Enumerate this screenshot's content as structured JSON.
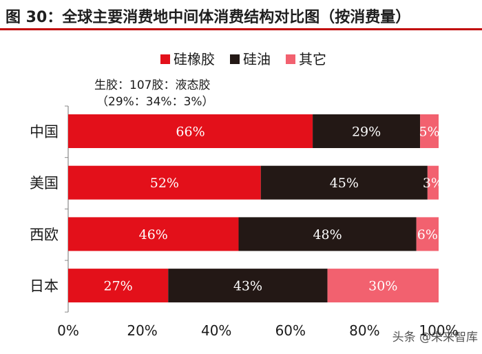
{
  "header": {
    "title": "图 30：全球主要消费地中间体消费结构对比图（按消费量）"
  },
  "annotation": {
    "line1": "生胶：107胶：液态胶",
    "line2": "（29%：34%：3%）"
  },
  "watermark": {
    "text": "头条 @未来智库"
  },
  "chart_data": {
    "type": "bar",
    "orientation": "horizontal",
    "stacked": true,
    "categories": [
      "中国",
      "美国",
      "西欧",
      "日本"
    ],
    "series": [
      {
        "name": "硅橡胶",
        "color": "#e3101a",
        "values": [
          66,
          52,
          46,
          27
        ]
      },
      {
        "name": "硅油",
        "color": "#231815",
        "values": [
          29,
          45,
          48,
          43
        ]
      },
      {
        "name": "其它",
        "color": "#f2616f",
        "values": [
          5,
          3,
          6,
          30
        ]
      }
    ],
    "data_labels": [
      [
        "66%",
        "29%",
        "5%"
      ],
      [
        "52%",
        "45%",
        "3%"
      ],
      [
        "46%",
        "48%",
        "6%"
      ],
      [
        "27%",
        "43%",
        "30%"
      ]
    ],
    "xlim": [
      0,
      100
    ],
    "x_ticks": [
      0,
      20,
      40,
      60,
      80,
      100
    ],
    "x_tick_labels": [
      "0%",
      "20%",
      "40%",
      "60%",
      "80%",
      "100%"
    ],
    "legend_position": "top-center",
    "grid": false
  }
}
